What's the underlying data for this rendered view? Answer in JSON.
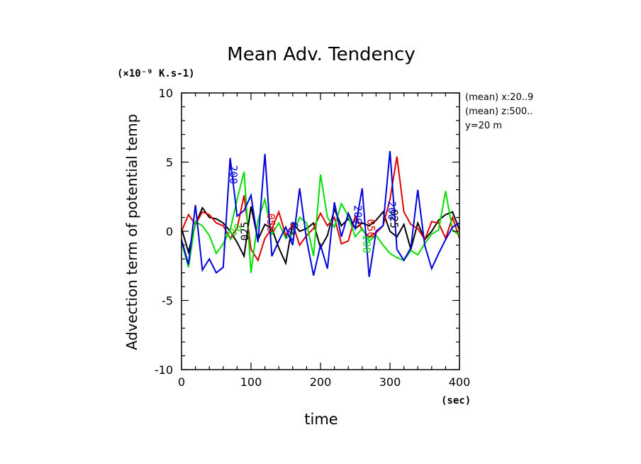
{
  "chart_data": {
    "type": "line",
    "title": "Mean Adv. Tendency",
    "xlabel": "time",
    "ylabel": "Advection term of potential temp",
    "x_unit": "(sec)",
    "y_unit": "(×10⁻⁹ K.s-1)",
    "xlim": [
      0,
      400
    ],
    "ylim": [
      -10,
      10
    ],
    "x_ticks": [
      "0",
      "100",
      "200",
      "300",
      "400"
    ],
    "y_ticks": [
      "-10",
      "-5",
      "0",
      "5",
      "10"
    ],
    "grid": false,
    "notes": [
      "(mean) x:20..9",
      "(mean) z:500..",
      "y=20 m"
    ],
    "x": [
      0,
      10,
      20,
      30,
      40,
      50,
      60,
      70,
      80,
      90,
      100,
      110,
      120,
      130,
      140,
      150,
      160,
      170,
      180,
      190,
      200,
      210,
      220,
      230,
      240,
      250,
      260,
      270,
      280,
      290,
      300,
      310,
      320,
      330,
      340,
      350,
      360,
      370,
      380,
      390,
      400
    ],
    "series": [
      {
        "name": "025",
        "color": "#000000",
        "values": [
          0.2,
          -1.5,
          0.5,
          1.7,
          1.0,
          0.9,
          0.6,
          0.0,
          -0.8,
          -1.8,
          1.8,
          -0.6,
          0.5,
          0.2,
          -1.2,
          -2.3,
          0.6,
          0.0,
          0.2,
          0.6,
          -1.2,
          -0.3,
          1.6,
          0.4,
          0.9,
          0.2,
          0.6,
          0.4,
          0.8,
          1.4,
          0.0,
          -0.4,
          0.5,
          -1.3,
          0.6,
          -0.6,
          0.0,
          0.8,
          1.2,
          1.4,
          0.1
        ]
      },
      {
        "name": "050",
        "color": "#e00000",
        "values": [
          0.0,
          1.2,
          0.5,
          1.4,
          1.2,
          0.6,
          0.4,
          -0.5,
          0.2,
          2.6,
          -1.3,
          -2.1,
          -0.5,
          0.2,
          1.4,
          -0.3,
          0.5,
          -1.0,
          -0.3,
          0.2,
          1.3,
          0.4,
          1.0,
          -0.9,
          -0.7,
          1.1,
          0.1,
          -0.4,
          -0.1,
          0.4,
          2.3,
          5.4,
          1.4,
          0.5,
          0.2,
          -0.6,
          0.7,
          0.6,
          -0.5,
          1.0,
          -0.5
        ]
      },
      {
        "name": "100",
        "color": "#00e000",
        "values": [
          -0.8,
          -2.6,
          0.7,
          0.4,
          -0.3,
          -1.6,
          -0.9,
          0.1,
          2.3,
          4.3,
          -3.0,
          0.8,
          2.3,
          -0.2,
          0.6,
          -0.5,
          -0.2,
          1.0,
          0.6,
          -1.8,
          4.1,
          1.0,
          0.3,
          2.0,
          1.1,
          -0.4,
          0.2,
          -0.7,
          -0.3,
          -1.0,
          -1.6,
          -1.9,
          -2.1,
          -1.4,
          -1.7,
          -0.9,
          -0.2,
          0.1,
          2.9,
          0.1,
          -0.3
        ]
      },
      {
        "name": "200",
        "color": "#0000dd",
        "values": [
          -0.6,
          -2.4,
          1.9,
          -2.8,
          -2.0,
          -3.0,
          -2.6,
          5.3,
          1.1,
          1.5,
          2.6,
          -0.8,
          5.6,
          -1.8,
          -0.7,
          0.3,
          -1.0,
          3.1,
          -0.6,
          -3.2,
          -1.0,
          -2.7,
          2.1,
          -0.4,
          1.3,
          0.2,
          3.1,
          -3.3,
          0.0,
          0.4,
          5.8,
          -1.3,
          -2.1,
          -1.2,
          3.0,
          -1.0,
          -2.7,
          -1.6,
          -0.6,
          0.3,
          0.6
        ]
      }
    ],
    "inline_labels": [
      {
        "series": "025",
        "text": "025",
        "x": 92,
        "y": 0.0,
        "rotate": -90
      },
      {
        "series": "025",
        "text": "025",
        "x": 305,
        "y": 0.9,
        "rotate": 90
      },
      {
        "series": "050",
        "text": "050",
        "x": 128,
        "y": 0.6,
        "rotate": 90
      },
      {
        "series": "050",
        "text": "050",
        "x": 272,
        "y": 0.2,
        "rotate": 90
      },
      {
        "series": "100",
        "text": "100",
        "x": 75,
        "y": -0.1,
        "rotate": -45
      },
      {
        "series": "100",
        "text": "100",
        "x": 266,
        "y": -0.9,
        "rotate": 90
      },
      {
        "series": "200",
        "text": "200",
        "x": 74,
        "y": 4.1,
        "rotate": 90
      },
      {
        "series": "200",
        "text": "200",
        "x": 160,
        "y": 0.0,
        "rotate": -70
      },
      {
        "series": "200",
        "text": "200",
        "x": 253,
        "y": 1.2,
        "rotate": 90
      },
      {
        "series": "200",
        "text": "200",
        "x": 302,
        "y": 1.5,
        "rotate": 90
      }
    ]
  }
}
